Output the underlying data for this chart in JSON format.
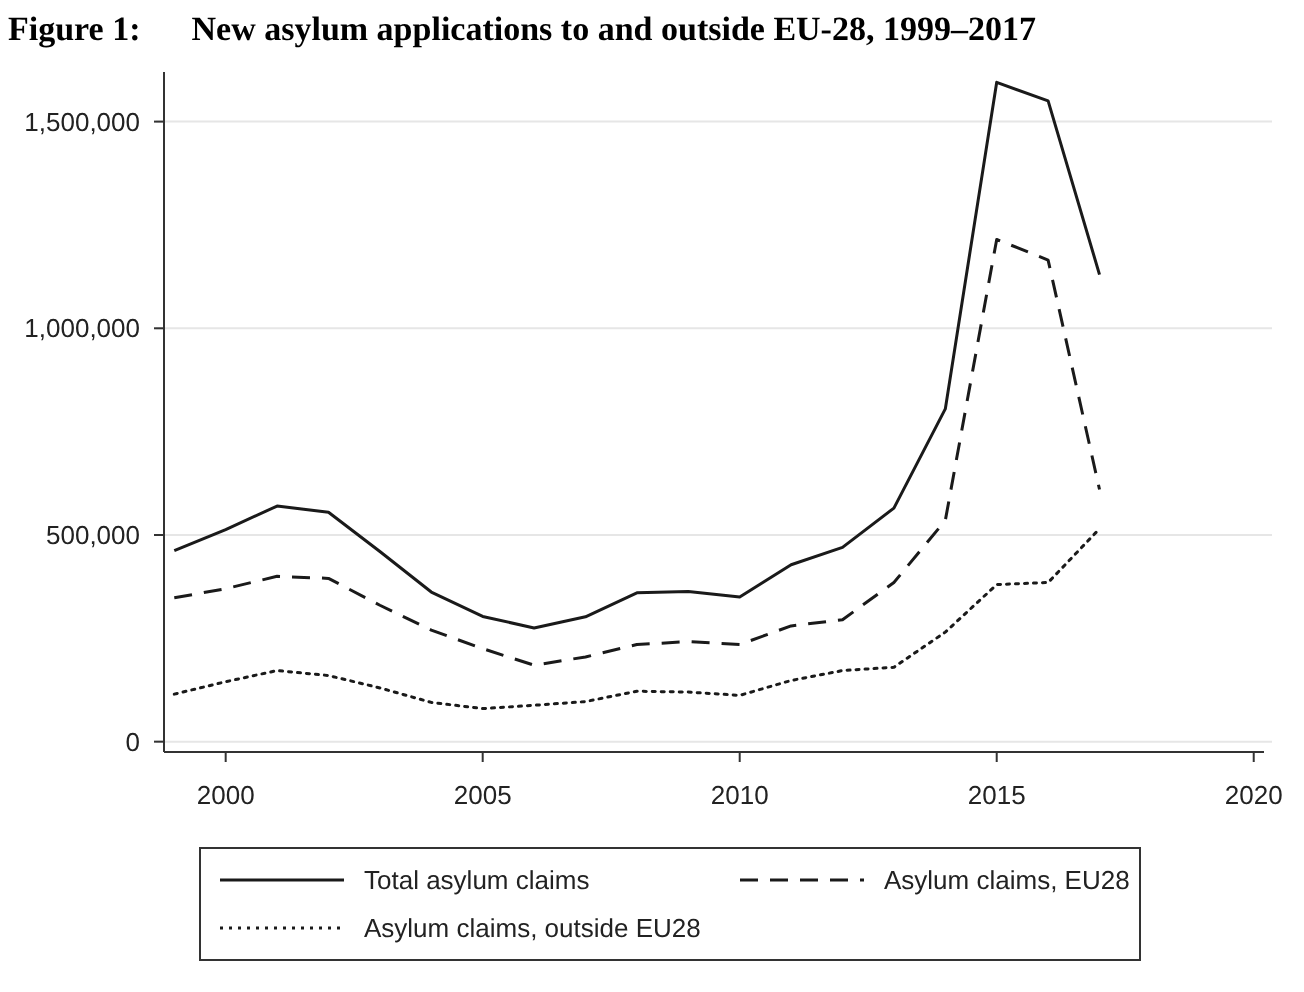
{
  "chart_data": {
    "type": "line",
    "title": "Figure 1:      New asylum applications to and outside EU-28, 1999–2017",
    "x": [
      1999,
      2000,
      2001,
      2002,
      2003,
      2004,
      2005,
      2006,
      2007,
      2008,
      2009,
      2010,
      2011,
      2012,
      2013,
      2014,
      2015,
      2016,
      2017
    ],
    "xlim": [
      1998.8,
      2020.2
    ],
    "xticks": [
      2000,
      2005,
      2010,
      2015,
      2020
    ],
    "ylim": [
      -25000,
      1620000
    ],
    "yticks": [
      {
        "value": 0,
        "label": "0"
      },
      {
        "value": 500000,
        "label": "500,000"
      },
      {
        "value": 1000000,
        "label": "1,000,000"
      },
      {
        "value": 1500000,
        "label": "1,500,000"
      }
    ],
    "grid": "y",
    "legend": "bottom",
    "marker": "none",
    "series": [
      {
        "name": "Total asylum claims",
        "color": "#1a1a1a",
        "line_style": "solid",
        "values": [
          462000,
          513000,
          570000,
          555000,
          460000,
          362000,
          303000,
          275000,
          302000,
          360000,
          363000,
          350000,
          428000,
          470000,
          565000,
          805000,
          1595000,
          1550000,
          1130000
        ]
      },
      {
        "name": "Asylum claims, EU28",
        "color": "#1a1a1a",
        "line_style": "dashed",
        "values": [
          348000,
          370000,
          400000,
          395000,
          330000,
          270000,
          225000,
          185000,
          205000,
          235000,
          242000,
          235000,
          280000,
          295000,
          385000,
          535000,
          1215000,
          1165000,
          610000
        ]
      },
      {
        "name": "Asylum claims, outside EU28",
        "color": "#1a1a1a",
        "line_style": "dotted",
        "values": [
          115000,
          145000,
          172000,
          160000,
          130000,
          95000,
          80000,
          88000,
          97000,
          122000,
          120000,
          112000,
          148000,
          172000,
          180000,
          265000,
          380000,
          385000,
          515000
        ]
      }
    ]
  }
}
